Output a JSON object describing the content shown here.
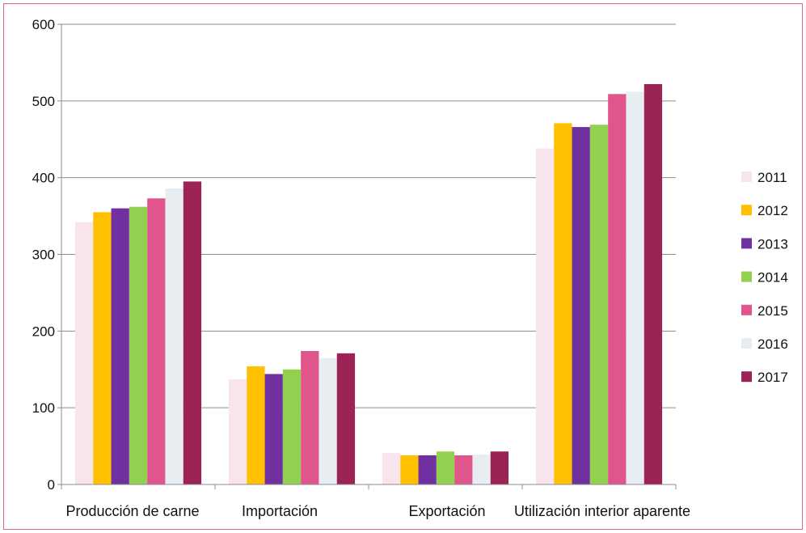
{
  "chart_data": {
    "type": "bar",
    "categories": [
      "Producción de carne",
      "Importación",
      "Exportación",
      "Utilización interior aparente"
    ],
    "series": [
      {
        "name": "2011",
        "color": "#f8e4ec",
        "values": [
          342,
          137,
          41,
          438
        ]
      },
      {
        "name": "2012",
        "color": "#ffc000",
        "values": [
          355,
          154,
          38,
          471
        ]
      },
      {
        "name": "2013",
        "color": "#7030a0",
        "values": [
          360,
          144,
          38,
          466
        ]
      },
      {
        "name": "2014",
        "color": "#92d050",
        "values": [
          362,
          150,
          43,
          469
        ]
      },
      {
        "name": "2015",
        "color": "#e0558b",
        "values": [
          373,
          174,
          38,
          509
        ]
      },
      {
        "name": "2016",
        "color": "#e8edf1",
        "values": [
          386,
          165,
          39,
          512
        ]
      },
      {
        "name": "2017",
        "color": "#9b2356",
        "values": [
          395,
          171,
          43,
          522
        ]
      }
    ],
    "yticks": [
      "0",
      "100",
      "200",
      "300",
      "400",
      "500",
      "600"
    ],
    "ylim": [
      0,
      600
    ],
    "grid": true,
    "legend_position": "right"
  }
}
